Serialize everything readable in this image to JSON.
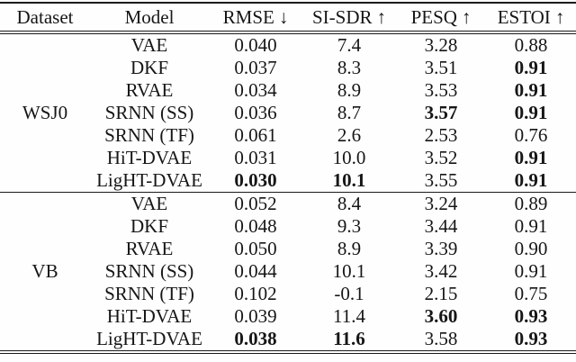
{
  "table": {
    "columns": [
      {
        "key": "dataset",
        "label": "Dataset",
        "arrow": ""
      },
      {
        "key": "model",
        "label": "Model",
        "arrow": ""
      },
      {
        "key": "rmse",
        "label": "RMSE",
        "arrow": "↓"
      },
      {
        "key": "sisdr",
        "label": "SI-SDR",
        "arrow": "↑"
      },
      {
        "key": "pesq",
        "label": "PESQ",
        "arrow": "↑"
      },
      {
        "key": "estoi",
        "label": "ESTOI",
        "arrow": "↑"
      }
    ],
    "sections": [
      {
        "dataset": "WSJ0",
        "rows": [
          {
            "model": "VAE",
            "values": [
              "0.040",
              "7.4",
              "3.28",
              "0.88"
            ],
            "bold": [
              false,
              false,
              false,
              false
            ]
          },
          {
            "model": "DKF",
            "values": [
              "0.037",
              "8.3",
              "3.51",
              "0.91"
            ],
            "bold": [
              false,
              false,
              false,
              true
            ]
          },
          {
            "model": "RVAE",
            "values": [
              "0.034",
              "8.9",
              "3.53",
              "0.91"
            ],
            "bold": [
              false,
              false,
              false,
              true
            ]
          },
          {
            "model": "SRNN (SS)",
            "values": [
              "0.036",
              "8.7",
              "3.57",
              "0.91"
            ],
            "bold": [
              false,
              false,
              true,
              true
            ]
          },
          {
            "model": "SRNN (TF)",
            "values": [
              "0.061",
              "2.6",
              "2.53",
              "0.76"
            ],
            "bold": [
              false,
              false,
              false,
              false
            ]
          },
          {
            "model": "HiT-DVAE",
            "values": [
              "0.031",
              "10.0",
              "3.52",
              "0.91"
            ],
            "bold": [
              false,
              false,
              false,
              true
            ]
          },
          {
            "model": "LigHT-DVAE",
            "values": [
              "0.030",
              "10.1",
              "3.55",
              "0.91"
            ],
            "bold": [
              true,
              true,
              false,
              true
            ]
          }
        ]
      },
      {
        "dataset": "VB",
        "rows": [
          {
            "model": "VAE",
            "values": [
              "0.052",
              "8.4",
              "3.24",
              "0.89"
            ],
            "bold": [
              false,
              false,
              false,
              false
            ]
          },
          {
            "model": "DKF",
            "values": [
              "0.048",
              "9.3",
              "3.44",
              "0.91"
            ],
            "bold": [
              false,
              false,
              false,
              false
            ]
          },
          {
            "model": "RVAE",
            "values": [
              "0.050",
              "8.9",
              "3.39",
              "0.90"
            ],
            "bold": [
              false,
              false,
              false,
              false
            ]
          },
          {
            "model": "SRNN (SS)",
            "values": [
              "0.044",
              "10.1",
              "3.42",
              "0.91"
            ],
            "bold": [
              false,
              false,
              false,
              false
            ]
          },
          {
            "model": "SRNN (TF)",
            "values": [
              "0.102",
              "-0.1",
              "2.15",
              "0.75"
            ],
            "bold": [
              false,
              false,
              false,
              false
            ]
          },
          {
            "model": "HiT-DVAE",
            "values": [
              "0.039",
              "11.4",
              "3.60",
              "0.93"
            ],
            "bold": [
              false,
              false,
              true,
              true
            ]
          },
          {
            "model": "LigHT-DVAE",
            "values": [
              "0.038",
              "11.6",
              "3.58",
              "0.93"
            ],
            "bold": [
              true,
              true,
              false,
              true
            ]
          }
        ]
      }
    ],
    "text_color": "#161616",
    "rule_color": "#1b1b1b"
  }
}
